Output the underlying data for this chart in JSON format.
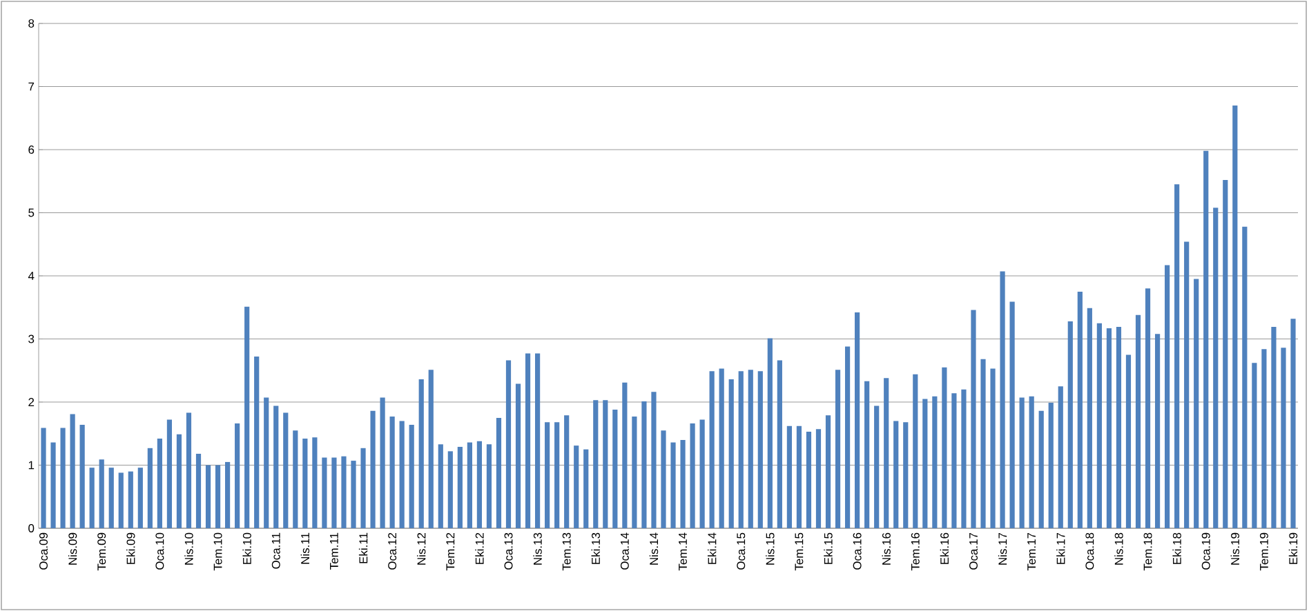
{
  "chart_data": {
    "type": "bar",
    "color": "#4f81bd",
    "grid": "y",
    "ylim": [
      0,
      8
    ],
    "yticks": [
      0,
      1,
      2,
      3,
      4,
      5,
      6,
      7,
      8
    ],
    "categories": [
      "Oca.09",
      null,
      null,
      "Nis.09",
      null,
      null,
      "Tem.09",
      null,
      null,
      "Eki.09",
      null,
      null,
      "Oca.10",
      null,
      null,
      "Nis.10",
      null,
      null,
      "Tem.10",
      null,
      null,
      "Eki.10",
      null,
      null,
      "Oca.11",
      null,
      null,
      "Nis.11",
      null,
      null,
      "Tem.11",
      null,
      null,
      "Eki.11",
      null,
      null,
      "Oca.12",
      null,
      null,
      "Nis.12",
      null,
      null,
      "Tem.12",
      null,
      null,
      "Eki.12",
      null,
      null,
      "Oca.13",
      null,
      null,
      "Nis.13",
      null,
      null,
      "Tem.13",
      null,
      null,
      "Eki.13",
      null,
      null,
      "Oca.14",
      null,
      null,
      "Nis.14",
      null,
      null,
      "Tem.14",
      null,
      null,
      "Eki.14",
      null,
      null,
      "Oca.15",
      null,
      null,
      "Nis.15",
      null,
      null,
      "Tem.15",
      null,
      null,
      "Eki.15",
      null,
      null,
      "Oca.16",
      null,
      null,
      "Nis.16",
      null,
      null,
      "Tem.16",
      null,
      null,
      "Eki.16",
      null,
      null,
      "Oca.17",
      null,
      null,
      "Nis.17",
      null,
      null,
      "Tem.17",
      null,
      null,
      "Eki.17",
      null,
      null,
      "Oca.18",
      null,
      null,
      "Nis.18",
      null,
      null,
      "Tem.18",
      null,
      null,
      "Eki.18",
      null,
      null,
      "Oca.19",
      null,
      null,
      "Nis.19",
      null,
      null,
      "Tem.19",
      null,
      null,
      "Eki.19"
    ],
    "values": [
      1.59,
      1.36,
      1.59,
      1.81,
      1.64,
      0.96,
      1.09,
      0.96,
      0.88,
      0.9,
      0.96,
      1.27,
      1.42,
      1.72,
      1.49,
      1.83,
      1.18,
      1.0,
      1.0,
      1.05,
      1.66,
      3.51,
      2.72,
      2.07,
      1.94,
      1.83,
      1.55,
      1.42,
      1.44,
      1.12,
      1.12,
      1.14,
      1.07,
      1.27,
      1.86,
      2.07,
      1.77,
      1.7,
      1.64,
      2.36,
      2.51,
      1.33,
      1.22,
      1.29,
      1.36,
      1.38,
      1.33,
      1.75,
      2.66,
      2.29,
      2.77,
      2.77,
      1.68,
      1.68,
      1.79,
      1.31,
      1.25,
      2.03,
      2.03,
      1.88,
      2.31,
      1.77,
      2.01,
      2.16,
      1.55,
      1.36,
      1.4,
      1.66,
      1.72,
      2.49,
      2.53,
      2.36,
      2.49,
      2.51,
      2.49,
      3.01,
      2.66,
      1.62,
      1.62,
      1.53,
      1.57,
      1.79,
      2.51,
      2.88,
      3.42,
      2.33,
      1.94,
      2.38,
      1.7,
      1.68,
      2.44,
      2.05,
      2.09,
      2.55,
      2.14,
      2.2,
      3.46,
      2.68,
      2.53,
      4.07,
      3.59,
      2.07,
      2.09,
      1.86,
      1.99,
      2.25,
      3.28,
      3.75,
      3.49,
      3.25,
      3.17,
      3.19,
      2.75,
      3.38,
      3.8,
      3.08,
      4.17,
      5.45,
      4.54,
      3.95,
      5.98,
      5.08,
      5.52,
      6.7,
      4.78,
      2.62,
      2.84,
      3.19,
      2.86,
      3.32
    ]
  }
}
